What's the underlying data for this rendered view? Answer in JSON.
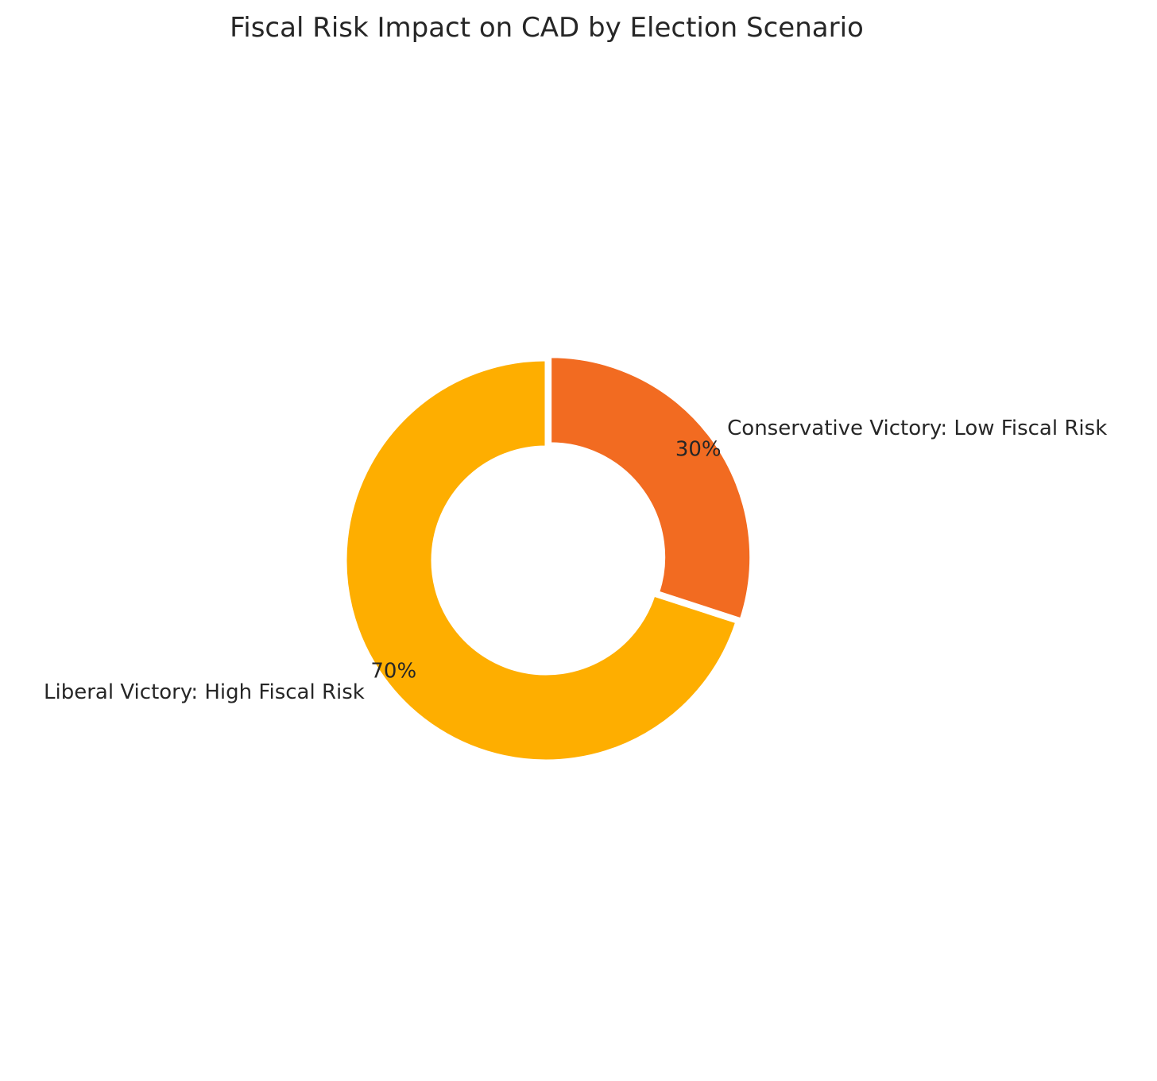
{
  "chart_data": {
    "type": "pie",
    "variant": "donut",
    "title": "Fiscal Risk Impact on CAD by Election Scenario",
    "slices": [
      {
        "label": "Conservative Victory: Low Fiscal Risk",
        "value": 30,
        "pct_label": "30%",
        "color": "#F26B21"
      },
      {
        "label": "Liberal Victory: High Fiscal Risk",
        "value": 70,
        "pct_label": "70%",
        "color": "#FEAE00"
      }
    ],
    "start_angle_deg": 90,
    "direction": "clockwise",
    "exploded_slice": "Conservative Victory: Low Fiscal Risk"
  }
}
